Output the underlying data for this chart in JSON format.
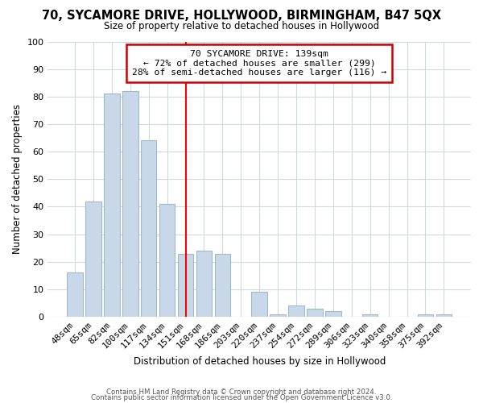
{
  "title": "70, SYCAMORE DRIVE, HOLLYWOOD, BIRMINGHAM, B47 5QX",
  "subtitle": "Size of property relative to detached houses in Hollywood",
  "xlabel": "Distribution of detached houses by size in Hollywood",
  "ylabel": "Number of detached properties",
  "bar_labels": [
    "48sqm",
    "65sqm",
    "82sqm",
    "100sqm",
    "117sqm",
    "134sqm",
    "151sqm",
    "168sqm",
    "186sqm",
    "203sqm",
    "220sqm",
    "237sqm",
    "254sqm",
    "272sqm",
    "289sqm",
    "306sqm",
    "323sqm",
    "340sqm",
    "358sqm",
    "375sqm",
    "392sqm"
  ],
  "bar_values": [
    16,
    42,
    81,
    82,
    64,
    41,
    23,
    24,
    23,
    0,
    9,
    1,
    4,
    3,
    2,
    0,
    1,
    0,
    0,
    1,
    1
  ],
  "bar_color": "#c8d8e8",
  "bar_edge_color": "#a0b8cc",
  "vline_x": 6.0,
  "vline_color": "red",
  "annotation_title": "70 SYCAMORE DRIVE: 139sqm",
  "annotation_line1": "← 72% of detached houses are smaller (299)",
  "annotation_line2": "28% of semi-detached houses are larger (116) →",
  "annotation_box_color": "white",
  "annotation_box_edge": "#cc0000",
  "ylim": [
    0,
    100
  ],
  "yticks": [
    0,
    10,
    20,
    30,
    40,
    50,
    60,
    70,
    80,
    90,
    100
  ],
  "footer1": "Contains HM Land Registry data © Crown copyright and database right 2024.",
  "footer2": "Contains public sector information licensed under the Open Government Licence v3.0.",
  "bg_color": "white",
  "grid_color": "#d0d8e0"
}
